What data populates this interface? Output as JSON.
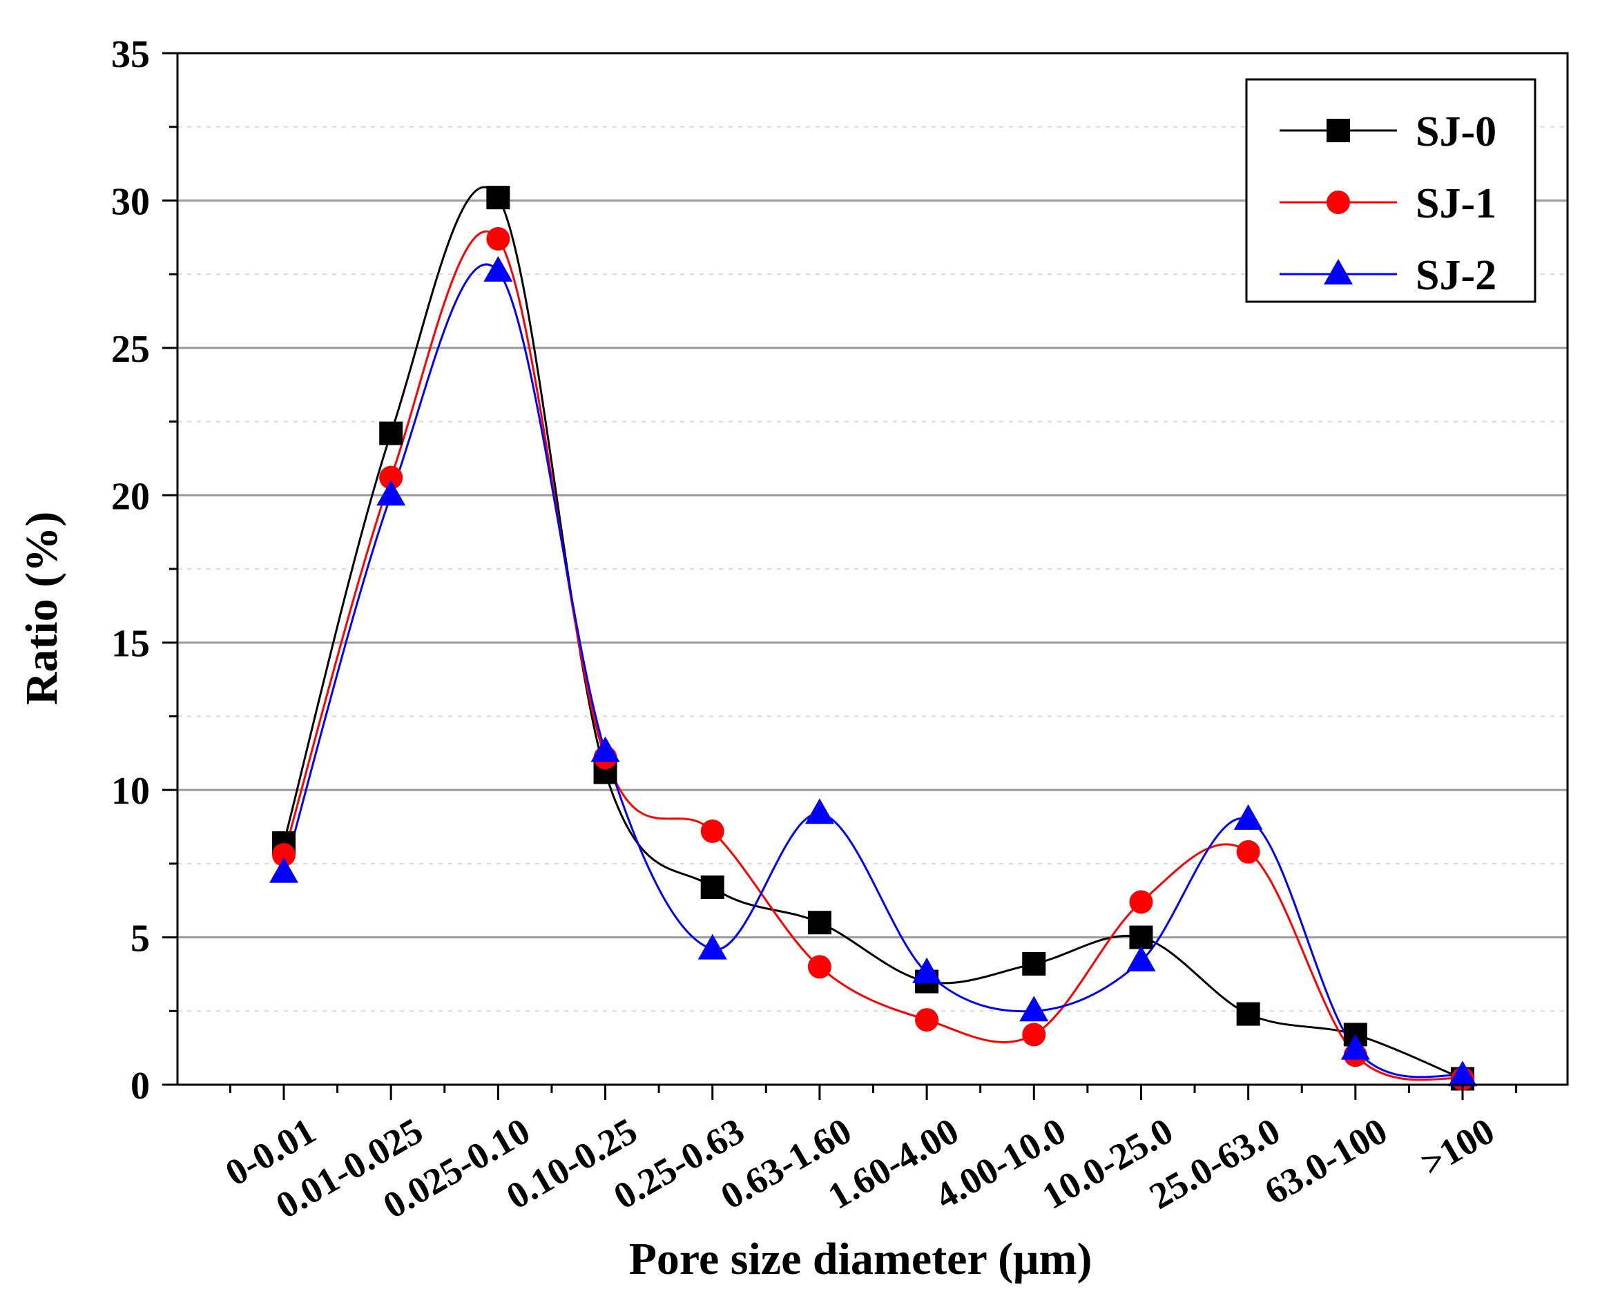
{
  "chart_data": {
    "type": "line",
    "title": "",
    "xlabel": "Pore size diameter (μm)",
    "ylabel": "Ratio (%)",
    "ylim": [
      0,
      35
    ],
    "yticks": [
      "0",
      "5",
      "10",
      "15",
      "20",
      "25",
      "30",
      "35"
    ],
    "grid": true,
    "legend_position": "top-right",
    "smoothed": true,
    "categories": [
      "0-0.01",
      "0.01-0.025",
      "0.025-0.10",
      "0.10-0.25",
      "0.25-0.63",
      "0.63-1.60",
      "1.60-4.00",
      "4.00-10.0",
      "10.0-25.0",
      "25.0-63.0",
      "63.0-100",
      ">100"
    ],
    "series": [
      {
        "name": "SJ-0",
        "color": "#000000",
        "marker": "square",
        "values": [
          8.2,
          22.1,
          30.1,
          10.6,
          6.7,
          5.5,
          3.5,
          4.1,
          5.0,
          2.4,
          1.7,
          0.2
        ]
      },
      {
        "name": "SJ-1",
        "color": "#ff0000",
        "marker": "circle",
        "values": [
          7.8,
          20.6,
          28.7,
          11.1,
          8.6,
          4.0,
          2.2,
          1.7,
          6.2,
          7.9,
          1.0,
          0.2
        ]
      },
      {
        "name": "SJ-2",
        "color": "#0000ff",
        "marker": "triangle",
        "values": [
          7.2,
          20.0,
          27.6,
          11.3,
          4.6,
          9.2,
          3.8,
          2.5,
          4.2,
          9.0,
          1.2,
          0.3
        ]
      }
    ]
  }
}
